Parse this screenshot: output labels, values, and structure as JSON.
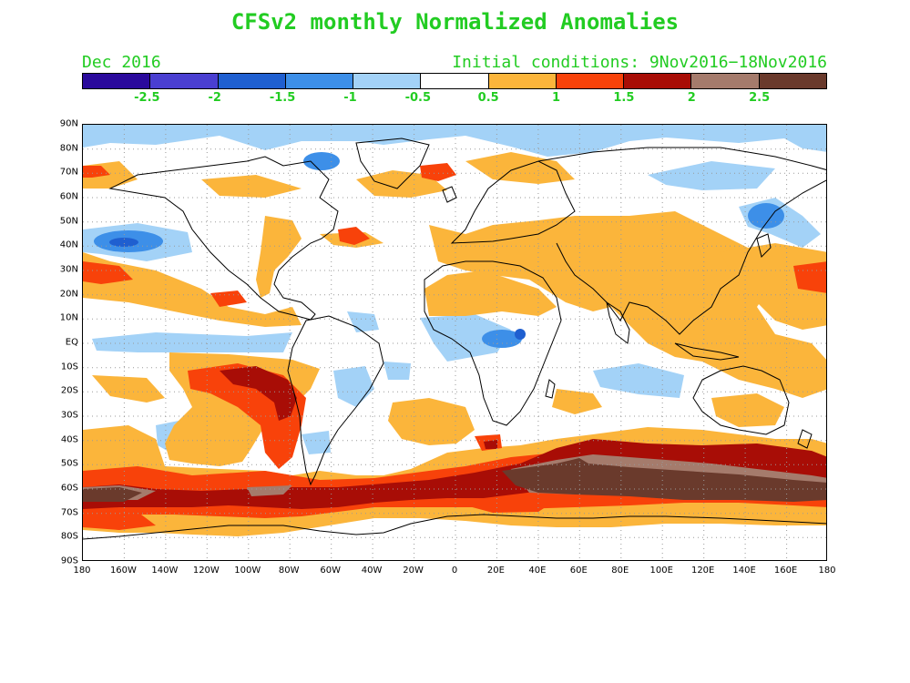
{
  "header": {
    "title": "CFSv2 monthly Normalized Anomalies",
    "month": "Dec 2016",
    "initial_conditions": "Initial conditions: 9Nov2016−18Nov2016"
  },
  "colorbar": {
    "colors": [
      "#2a0a9c",
      "#4a3fd1",
      "#1f5fd0",
      "#3d8fe8",
      "#a3d2f7",
      "#ffffff",
      "#fbb53b",
      "#f8420a",
      "#a80d06",
      "#a57b6c",
      "#6a3a2c"
    ],
    "labels": [
      "-2.5",
      "-2",
      "-1.5",
      "-1",
      "-0.5",
      "0.5",
      "1",
      "1.5",
      "2",
      "2.5"
    ]
  },
  "map": {
    "lat_labels": [
      "90N",
      "80N",
      "70N",
      "60N",
      "50N",
      "40N",
      "30N",
      "20N",
      "10N",
      "EQ",
      "10S",
      "20S",
      "30S",
      "40S",
      "50S",
      "60S",
      "70S",
      "80S",
      "90S"
    ],
    "lon_labels": [
      "180",
      "160W",
      "140W",
      "120W",
      "100W",
      "80W",
      "60W",
      "40W",
      "20W",
      "0",
      "20E",
      "40E",
      "60E",
      "80E",
      "100E",
      "120E",
      "140E",
      "160E",
      "180"
    ],
    "colors": {
      "light_blue": "#a3d2f7",
      "blue": "#3d8fe8",
      "dark_blue": "#1f5fd0",
      "orange": "#fbb53b",
      "red": "#f8420a",
      "dark_red": "#a80d06",
      "taupe": "#a57b6c",
      "brown": "#6a3a2c",
      "coast": "#000000",
      "grid": "#9a9a9a"
    }
  }
}
